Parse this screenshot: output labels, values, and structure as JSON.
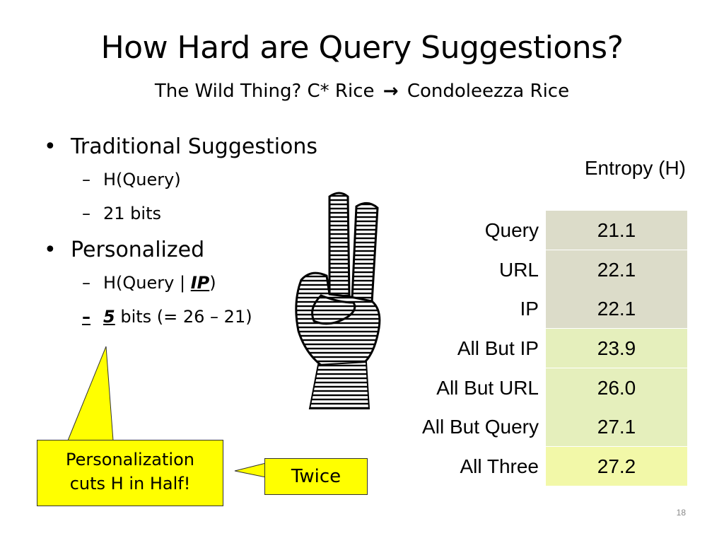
{
  "slide": {
    "title": "How Hard are Query Suggestions?",
    "subtitle_start": "The Wild Thing?   C* Rice",
    "subtitle_arrow": "→",
    "subtitle_end": "Condoleezza Rice",
    "page_number": "18"
  },
  "bullets": {
    "traditional": {
      "label": "Traditional Suggestions",
      "items": [
        "H(Query)",
        "21 bits"
      ]
    },
    "personalized": {
      "label": "Personalized",
      "item1_prefix": "H(Query | ",
      "item1_em": "IP",
      "item1_suffix": ")",
      "item2_em": "5",
      "item2_rest": " bits (= 26 – 21)"
    },
    "bullet_glyph": "•",
    "dash_glyph": "–"
  },
  "table": {
    "header": "Entropy (H)",
    "rows": [
      {
        "label": "Query",
        "value": "21.1",
        "shade": "#dcdcc9"
      },
      {
        "label": "URL",
        "value": "22.1",
        "shade": "#dcdcc9"
      },
      {
        "label": "IP",
        "value": "22.1",
        "shade": "#dcdcc9"
      },
      {
        "label": "All But IP",
        "value": "23.9",
        "shade": "#e5efbc"
      },
      {
        "label": "All But URL",
        "value": "26.0",
        "shade": "#e5efbc"
      },
      {
        "label": "All But Query",
        "value": "27.1",
        "shade": "#e5efbc"
      },
      {
        "label": "All Three",
        "value": "27.2",
        "shade": "#f2f8a8"
      }
    ]
  },
  "callouts": {
    "halve_line1": "Personalization",
    "halve_line2": "cuts H in Half!",
    "twice": "Twice",
    "fill_color": "#ffff00"
  },
  "image": {
    "icon": "two-fingers-hand-icon"
  }
}
